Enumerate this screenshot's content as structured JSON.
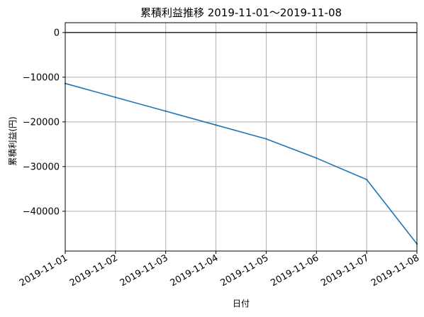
{
  "chart_data": {
    "type": "line",
    "title": "累積利益推移  2019-11-01〜2019-11-08",
    "xlabel": "日付",
    "ylabel": "累積利益(円)",
    "grid": true,
    "x": [
      "2019-11-01",
      "2019-11-02",
      "2019-11-03",
      "2019-11-04",
      "2019-11-05",
      "2019-11-06",
      "2019-11-07",
      "2019-11-08"
    ],
    "series": [
      {
        "values": [
          -11400,
          -14500,
          -17600,
          -20700,
          -23800,
          -28100,
          -32900,
          -47300
        ],
        "color": "#1f77b4"
      }
    ],
    "ylim": [
      -48900,
      2200
    ],
    "yticks": [
      0,
      -10000,
      -20000,
      -30000,
      -40000
    ],
    "ytick_labels": [
      "0",
      "−10000",
      "−20000",
      "−30000",
      "−40000"
    ],
    "zero_line": true,
    "zero_line_color": "#000000",
    "grid_color": "#b0b0b0"
  }
}
